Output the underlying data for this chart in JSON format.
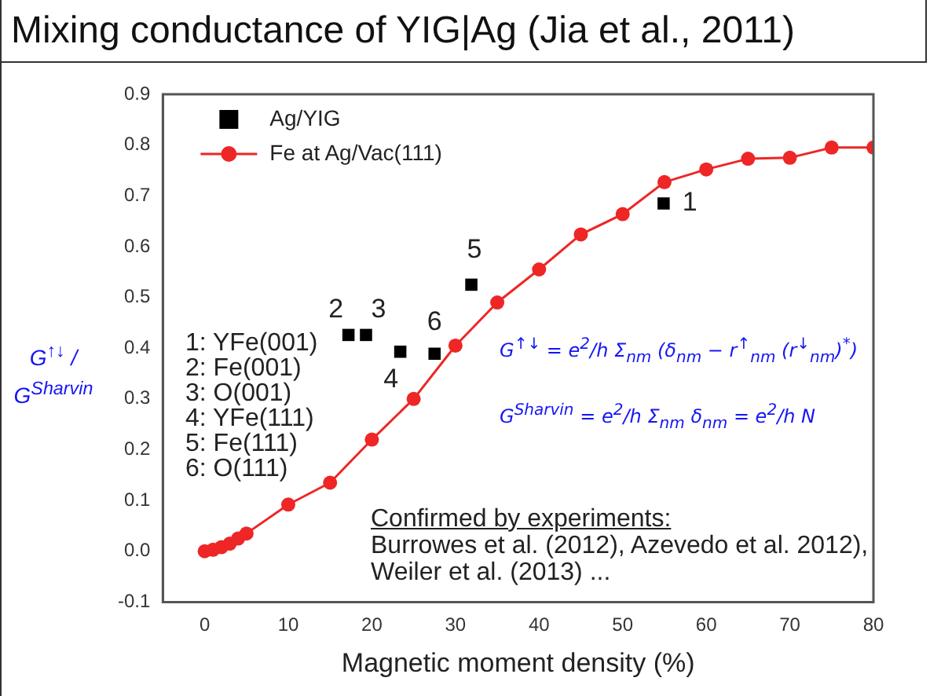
{
  "chart_data": {
    "type": "line",
    "title": "Mixing conductance of YIG|Ag (Jia et al., 2011)",
    "xlabel": "Magnetic moment density (%)",
    "ylabel": "G$^{↑↓}$ / G$^{Sharvin}$",
    "xlim": [
      -5,
      80
    ],
    "xticks": [
      0,
      10,
      20,
      30,
      40,
      50,
      60,
      70,
      80
    ],
    "ylim": [
      -0.1,
      0.9
    ],
    "yticks": [
      -0.1,
      {
        "value": 0,
        "label": "0.0"
      },
      0.1,
      0.2,
      0.3,
      0.4,
      0.5,
      0.6,
      0.7,
      0.8,
      0.9
    ],
    "grid": false,
    "legend": "top left",
    "series": [
      {
        "name": "Ag/YIG",
        "type": "scatter",
        "marker": "square",
        "color": "#000000",
        "x": [
          54.9,
          17.2,
          19.3,
          23.4,
          31.9,
          27.5
        ],
        "values": [
          0.685,
          0.426,
          0.426,
          0.393,
          0.525,
          0.389
        ]
      },
      {
        "name": "Fe at Ag/Vac(111)",
        "type": "line",
        "marker": "circle",
        "color": "#ee2626",
        "x": [
          0,
          1,
          2,
          3,
          4,
          5,
          10,
          15,
          20,
          25,
          30,
          35,
          40,
          45,
          50,
          55,
          60,
          65,
          70,
          75,
          80
        ],
        "values": [
          0,
          0.003,
          0.008,
          0.015,
          0.025,
          0.035,
          0.092,
          0.135,
          0.22,
          0.3,
          0.405,
          0.49,
          0.555,
          0.624,
          0.664,
          0.727,
          0.752,
          0.773,
          0.775,
          0.795,
          0.795
        ]
      }
    ],
    "annotations": [
      {
        "text": "1",
        "x": 54.9,
        "y": 0.685
      },
      {
        "text": "2",
        "x": 17.2,
        "y": 0.426
      },
      {
        "text": "3",
        "x": 19.3,
        "y": 0.426
      },
      {
        "text": "4",
        "x": 23.4,
        "y": 0.393
      },
      {
        "text": "5",
        "x": 31.9,
        "y": 0.525
      },
      {
        "text": "6",
        "x": 27.5,
        "y": 0.389
      },
      "1: YFe(001)",
      "2: Fe(001)",
      "3: O(001)",
      "4: YFe(111)",
      "5: Fe(111)",
      "6: O(111)",
      "G$^{↑↓}$ = e$^{2}$/h Σ$_{nm}$ (δ$_{nm}$ − r$^{↑}$$_{nm}$ (r$^{↓}$$_{nm}$)$^{*}$)",
      "G$^{Sharvin}$ = e$^{2}$/h Σ$_{nm}$ δ$_{nm}$ = e$^{2}$/h N",
      "Confirmed by experiments:",
      "Burrowes et al. (2012), Azevedo et al. 2012),",
      "Weiler et al. (2013) ..."
    ]
  }
}
